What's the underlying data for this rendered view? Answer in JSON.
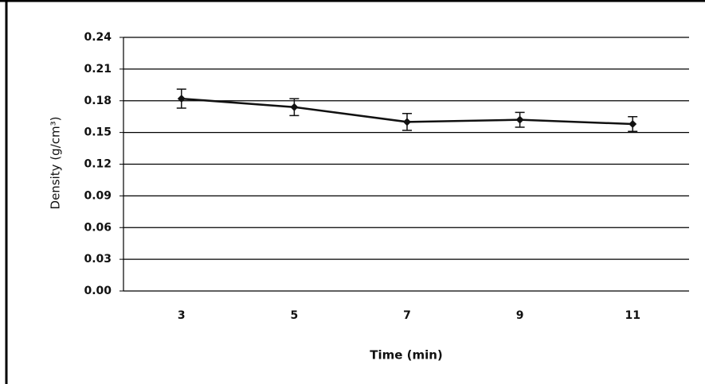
{
  "chart_data": {
    "type": "line",
    "y_label": "Density (g/cm³)",
    "x_label": "Time (min)",
    "categories": [
      "3",
      "5",
      "7",
      "9",
      "11"
    ],
    "values": [
      0.182,
      0.174,
      0.16,
      0.162,
      0.158
    ],
    "errors": [
      0.009,
      0.008,
      0.008,
      0.007,
      0.007
    ],
    "color": "#111111",
    "ylim": [
      0,
      0.24
    ],
    "yticks": [
      {
        "value": 0,
        "label": "0.00"
      },
      0.03,
      0.06,
      0.09,
      0.12,
      0.15,
      0.18,
      0.21,
      0.24
    ],
    "grid": true
  }
}
